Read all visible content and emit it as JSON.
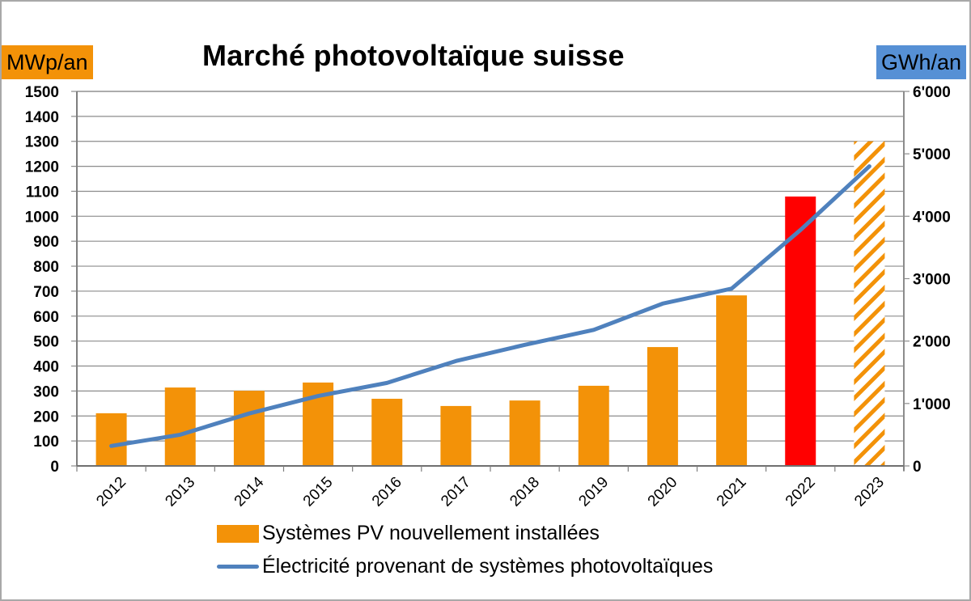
{
  "header": {
    "title": "Marché photovoltaïque suisse",
    "left_unit": "MWp/an",
    "right_unit": "GWh/an"
  },
  "legend": {
    "bars_label": "Systèmes PV nouvellement installées",
    "line_label": "Électricité provenant de systèmes photovoltaïques"
  },
  "colors": {
    "bar": "#f39208",
    "bar_highlight": "#ff0000",
    "bar_forecast_hatch": "#f39208",
    "line": "#4f81bd",
    "left_unit_bg": "#f39208",
    "right_unit_bg": "#5690d5",
    "grid": "#8c8c8c"
  },
  "chart_data": {
    "type": "bar",
    "title": "Marché photovoltaïque suisse",
    "categories": [
      "2012",
      "2013",
      "2014",
      "2015",
      "2016",
      "2017",
      "2018",
      "2019",
      "2020",
      "2021",
      "2022",
      "2023"
    ],
    "series": [
      {
        "name": "Systèmes PV nouvellement installées",
        "type": "bar",
        "axis": "left",
        "unit": "MWp/an",
        "values": [
          211,
          314,
          301,
          334,
          269,
          240,
          262,
          321,
          476,
          683,
          1079,
          1300
        ],
        "styles": [
          "solid",
          "solid",
          "solid",
          "solid",
          "solid",
          "solid",
          "solid",
          "solid",
          "solid",
          "solid",
          "highlight-red",
          "hatched-forecast"
        ]
      },
      {
        "name": "Électricité provenant de systèmes photovoltaïques",
        "type": "line",
        "axis": "right",
        "unit": "GWh/an",
        "values": [
          320,
          500,
          840,
          1120,
          1330,
          1680,
          1940,
          2180,
          2600,
          2840,
          3780,
          4800
        ]
      }
    ],
    "left_axis": {
      "label": "MWp/an",
      "ylim": [
        0,
        1500
      ],
      "ticks": [
        "0",
        "100",
        "200",
        "300",
        "400",
        "500",
        "600",
        "700",
        "800",
        "900",
        "1000",
        "1100",
        "1200",
        "1300",
        "1400",
        "1500"
      ]
    },
    "right_axis": {
      "label": "GWh/an",
      "ylim": [
        0,
        6000
      ],
      "ticks": [
        "0",
        "1'000",
        "2'000",
        "3'000",
        "4'000",
        "5'000",
        "6'000"
      ]
    },
    "xlabel": "",
    "grid": true,
    "legend_position": "bottom"
  }
}
